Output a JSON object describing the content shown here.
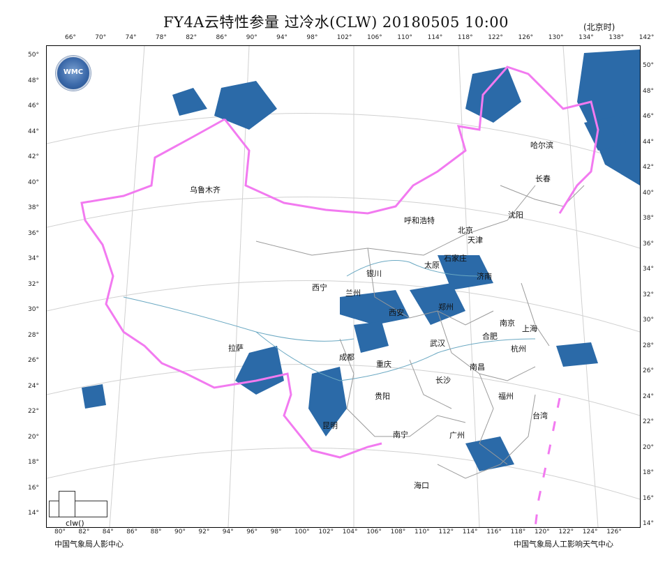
{
  "title": "FY4A云特性参量 过冷水(CLW) 20180505 10:00",
  "timezone": "(北京时)",
  "legend_caption": "clw()",
  "footer_left": "中国气象局人影中心",
  "footer_right": "中国气象局人工影响天气中心",
  "logo_text": "WMC",
  "colors": {
    "cloud": "#2b6aa8",
    "border": "#f27af0",
    "province": "#9a9a9a",
    "river": "#6aa8c2"
  },
  "top_ticks": [
    "66°",
    "70°",
    "74°",
    "78°",
    "82°",
    "86°",
    "90°",
    "94°",
    "98°",
    "102°",
    "106°",
    "110°",
    "114°",
    "118°",
    "122°",
    "126°",
    "130°",
    "134°",
    "138°",
    "142°"
  ],
  "bottom_ticks": [
    "80°",
    "82°",
    "84°",
    "86°",
    "88°",
    "90°",
    "92°",
    "94°",
    "96°",
    "98°",
    "100°",
    "102°",
    "104°",
    "106°",
    "108°",
    "110°",
    "112°",
    "114°",
    "116°",
    "118°",
    "120°",
    "122°",
    "124°",
    "126°"
  ],
  "left_ticks": [
    "50°",
    "48°",
    "46°",
    "44°",
    "42°",
    "40°",
    "38°",
    "36°",
    "34°",
    "32°",
    "30°",
    "28°",
    "26°",
    "24°",
    "22°",
    "20°",
    "18°",
    "16°",
    "14°"
  ],
  "right_ticks": [
    "50°",
    "48°",
    "46°",
    "44°",
    "42°",
    "40°",
    "38°",
    "36°",
    "34°",
    "32°",
    "30°",
    "28°",
    "26°",
    "24°",
    "22°",
    "20°",
    "18°",
    "16°",
    "14°"
  ],
  "cities": {
    "harbin": "哈尔滨",
    "changchun": "长春",
    "urumqi": "乌鲁木齐",
    "shenyang": "沈阳",
    "hohhot": "呼和浩特",
    "beijing": "北京",
    "tianjin": "天津",
    "shijiazhuang": "石家庄",
    "taiyuan": "太原",
    "yinchuan": "银川",
    "jinan": "济南",
    "xining": "西宁",
    "lanzhou": "兰州",
    "zhengzhou": "郑州",
    "xian": "西安",
    "nanjing": "南京",
    "shanghai": "上海",
    "hefei": "合肥",
    "wuhan": "武汉",
    "hangzhou": "杭州",
    "lhasa": "拉萨",
    "chengdu": "成都",
    "chongqing": "重庆",
    "nanchang": "南昌",
    "changsha": "长沙",
    "guiyang": "贵阳",
    "fuzhou": "福州",
    "taipei": "台湾",
    "kunming": "昆明",
    "nanning": "南宁",
    "guangzhou": "广州",
    "haikou": "海口"
  }
}
